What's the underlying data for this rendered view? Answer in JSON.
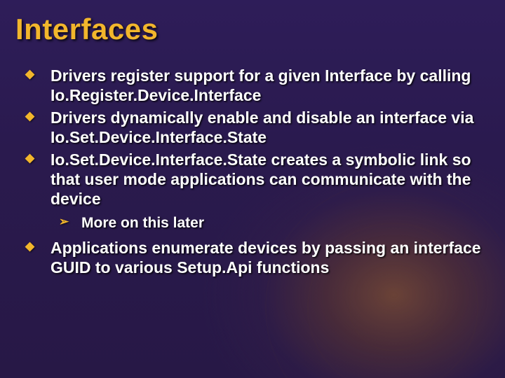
{
  "colors": {
    "background_base": "#2a1a4e",
    "background_glow": "#a06428",
    "accent": "#f2b62c",
    "text": "#ffffff",
    "shadow": "#000000"
  },
  "typography": {
    "title_fontsize": 42,
    "title_weight": 700,
    "body_fontsize": 23,
    "body_weight": 700,
    "sub_fontsize": 21,
    "font_family": "Arial"
  },
  "slide": {
    "title": "Interfaces",
    "bullets": [
      {
        "text": "Drivers register support for a given Interface by calling Io.Register.Device.Interface"
      },
      {
        "text": "Drivers dynamically enable and disable an interface via Io.Set.Device.Interface.State"
      },
      {
        "text": "Io.Set.Device.Interface.State creates a symbolic link so that user mode applications can communicate with the device",
        "sub": [
          {
            "text": "More on this later"
          }
        ]
      },
      {
        "text": "Applications enumerate devices by passing an interface GUID to various Setup.Api functions"
      }
    ]
  }
}
